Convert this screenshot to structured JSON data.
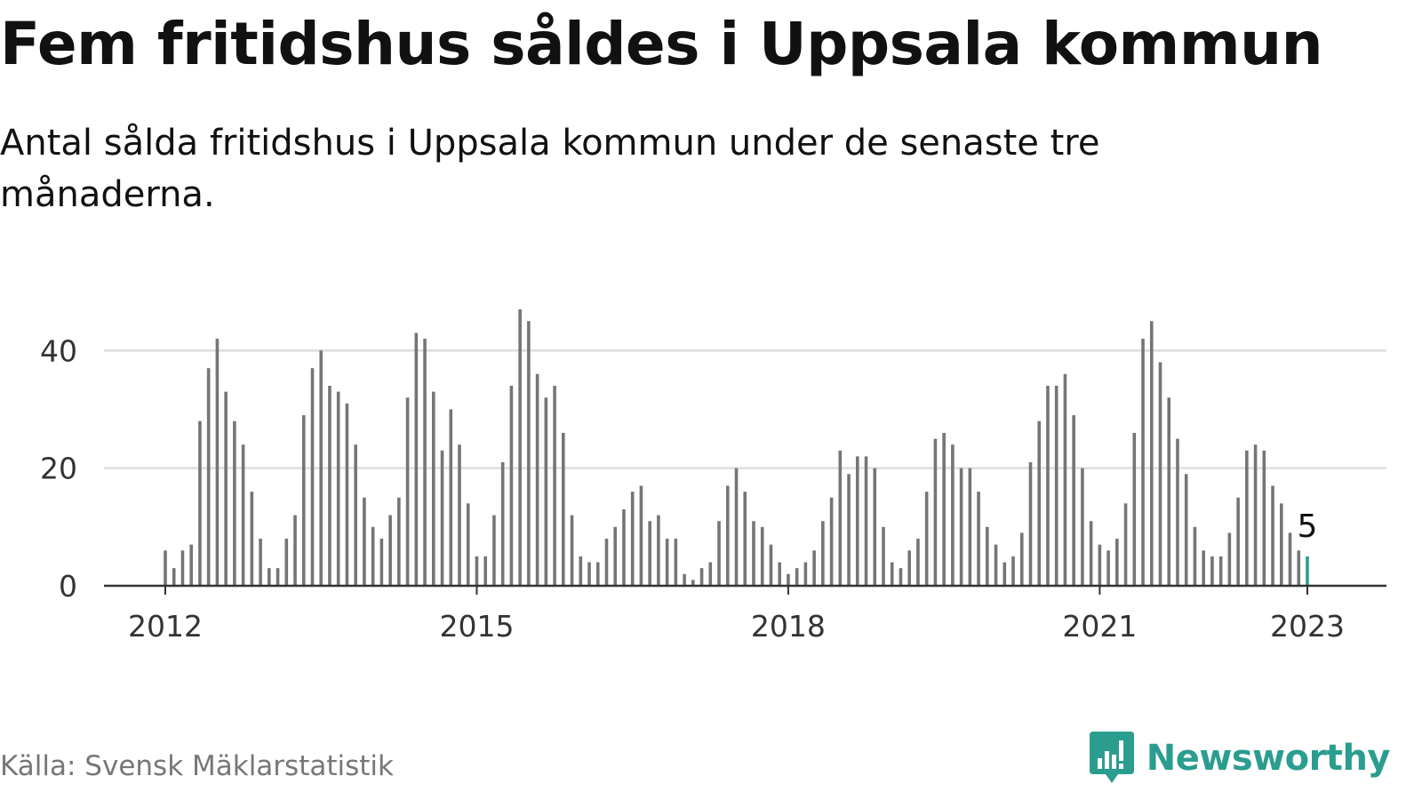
{
  "header": {
    "title": "Fem fritidshus såldes i Uppsala kommun",
    "subtitle": "Antal sålda fritidshus i Uppsala kommun under de senaste tre månaderna."
  },
  "footer": {
    "source": "Källa: Svensk Mäklarstatistik",
    "brand": "Newsworthy"
  },
  "colors": {
    "bar": "#757575",
    "highlight": "#2a9d8f",
    "grid": "#dddddd",
    "axis": "#333333",
    "text": "#111111"
  },
  "icons": {
    "brand_logo": "newsworthy-bar-chart-icon"
  },
  "chart_data": {
    "type": "bar",
    "title": "Fem fritidshus såldes i Uppsala kommun",
    "subtitle": "Antal sålda fritidshus i Uppsala kommun under de senaste tre månaderna.",
    "xlabel": "",
    "ylabel": "",
    "ylim": [
      0,
      48
    ],
    "yticks": [
      0,
      20,
      40
    ],
    "xticks": [
      "2012",
      "2015",
      "2018",
      "2021",
      "2023"
    ],
    "grid": true,
    "legend": "none",
    "x_start": "2012-01",
    "x_end": "2023-01",
    "categories": [
      "2012-01",
      "2012-02",
      "2012-03",
      "2012-04",
      "2012-05",
      "2012-06",
      "2012-07",
      "2012-08",
      "2012-09",
      "2012-10",
      "2012-11",
      "2012-12",
      "2013-01",
      "2013-02",
      "2013-03",
      "2013-04",
      "2013-05",
      "2013-06",
      "2013-07",
      "2013-08",
      "2013-09",
      "2013-10",
      "2013-11",
      "2013-12",
      "2014-01",
      "2014-02",
      "2014-03",
      "2014-04",
      "2014-05",
      "2014-06",
      "2014-07",
      "2014-08",
      "2014-09",
      "2014-10",
      "2014-11",
      "2014-12",
      "2015-01",
      "2015-02",
      "2015-03",
      "2015-04",
      "2015-05",
      "2015-06",
      "2015-07",
      "2015-08",
      "2015-09",
      "2015-10",
      "2015-11",
      "2015-12",
      "2016-01",
      "2016-02",
      "2016-03",
      "2016-04",
      "2016-05",
      "2016-06",
      "2016-07",
      "2016-08",
      "2016-09",
      "2016-10",
      "2016-11",
      "2016-12",
      "2017-01",
      "2017-02",
      "2017-03",
      "2017-04",
      "2017-05",
      "2017-06",
      "2017-07",
      "2017-08",
      "2017-09",
      "2017-10",
      "2017-11",
      "2017-12",
      "2018-01",
      "2018-02",
      "2018-03",
      "2018-04",
      "2018-05",
      "2018-06",
      "2018-07",
      "2018-08",
      "2018-09",
      "2018-10",
      "2018-11",
      "2018-12",
      "2019-01",
      "2019-02",
      "2019-03",
      "2019-04",
      "2019-05",
      "2019-06",
      "2019-07",
      "2019-08",
      "2019-09",
      "2019-10",
      "2019-11",
      "2019-12",
      "2020-01",
      "2020-02",
      "2020-03",
      "2020-04",
      "2020-05",
      "2020-06",
      "2020-07",
      "2020-08",
      "2020-09",
      "2020-10",
      "2020-11",
      "2020-12",
      "2021-01",
      "2021-02",
      "2021-03",
      "2021-04",
      "2021-05",
      "2021-06",
      "2021-07",
      "2021-08",
      "2021-09",
      "2021-10",
      "2021-11",
      "2021-12",
      "2022-01",
      "2022-02",
      "2022-03",
      "2022-04",
      "2022-05",
      "2022-06",
      "2022-07",
      "2022-08",
      "2022-09",
      "2022-10",
      "2022-11",
      "2022-12",
      "2023-01"
    ],
    "values": [
      6,
      3,
      6,
      7,
      28,
      37,
      42,
      33,
      28,
      24,
      16,
      8,
      3,
      3,
      8,
      12,
      29,
      37,
      40,
      34,
      33,
      31,
      24,
      15,
      10,
      8,
      12,
      15,
      32,
      43,
      42,
      33,
      23,
      30,
      24,
      14,
      5,
      5,
      12,
      21,
      34,
      47,
      45,
      36,
      32,
      34,
      26,
      12,
      5,
      4,
      4,
      8,
      10,
      13,
      16,
      17,
      11,
      12,
      8,
      8,
      2,
      1,
      3,
      4,
      11,
      17,
      20,
      16,
      11,
      10,
      7,
      4,
      2,
      3,
      4,
      6,
      11,
      15,
      23,
      19,
      22,
      22,
      20,
      10,
      4,
      3,
      6,
      8,
      16,
      25,
      26,
      24,
      20,
      20,
      16,
      10,
      7,
      4,
      5,
      9,
      21,
      28,
      34,
      34,
      36,
      29,
      20,
      11,
      7,
      6,
      8,
      14,
      26,
      42,
      45,
      38,
      32,
      25,
      19,
      10,
      6,
      5,
      5,
      9,
      15,
      23,
      24,
      23,
      17,
      14,
      9,
      6,
      5
    ],
    "highlight": {
      "category": "2023-01",
      "value": 5,
      "label": "5"
    }
  }
}
